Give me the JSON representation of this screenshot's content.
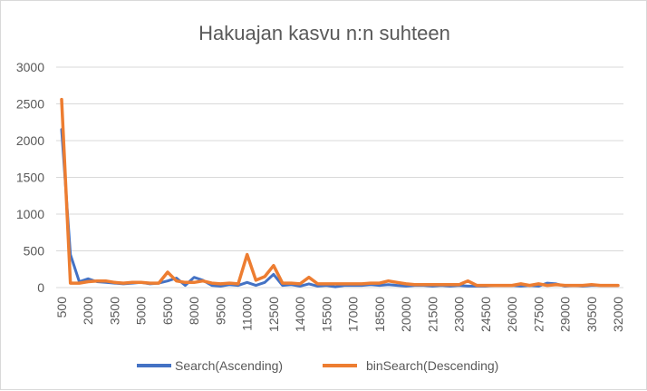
{
  "chart_data": {
    "type": "line",
    "title": "Hakuajan kasvu n:n suhteen",
    "xlabel": "",
    "ylabel": "",
    "ylim": [
      0,
      3000
    ],
    "yticks": [
      "0",
      "500",
      "1000",
      "1500",
      "2000",
      "2500",
      "3000"
    ],
    "grid": true,
    "legend_position": "bottom",
    "x": [
      500,
      1000,
      1500,
      2000,
      2500,
      3000,
      3500,
      4000,
      4500,
      5000,
      5500,
      6000,
      6500,
      7000,
      7500,
      8000,
      8500,
      9000,
      9500,
      10000,
      10500,
      11000,
      11500,
      12000,
      12500,
      13000,
      13500,
      14000,
      14500,
      15000,
      15500,
      16000,
      16500,
      17000,
      17500,
      18000,
      18500,
      19000,
      19500,
      20000,
      20500,
      21000,
      21500,
      22000,
      22500,
      23000,
      23500,
      24000,
      24500,
      25000,
      25500,
      26000,
      26500,
      27000,
      27500,
      28000,
      28500,
      29000,
      29500,
      30000,
      30500,
      31000,
      31500,
      32000
    ],
    "xtick_labels": [
      "500",
      "2000",
      "3500",
      "5000",
      "6500",
      "8000",
      "9500",
      "11000",
      "12500",
      "14000",
      "15500",
      "17000",
      "18500",
      "20000",
      "21500",
      "23000",
      "24500",
      "26000",
      "27500",
      "29000",
      "30500",
      "32000"
    ],
    "series": [
      {
        "name": "Search(Ascending)",
        "color": "#4472c4",
        "values": [
          2150,
          450,
          80,
          120,
          80,
          70,
          60,
          50,
          60,
          70,
          50,
          60,
          90,
          130,
          30,
          140,
          100,
          30,
          20,
          40,
          30,
          70,
          30,
          70,
          180,
          30,
          40,
          20,
          50,
          20,
          30,
          10,
          30,
          30,
          30,
          40,
          30,
          40,
          30,
          20,
          30,
          30,
          20,
          30,
          20,
          30,
          20,
          20,
          20,
          30,
          30,
          30,
          20,
          30,
          20,
          60,
          50,
          20,
          30,
          20,
          30,
          30,
          30,
          30
        ]
      },
      {
        "name": "binSearch(Descending)",
        "color": "#ed7d31",
        "values": [
          2560,
          60,
          60,
          80,
          90,
          90,
          70,
          60,
          70,
          70,
          60,
          60,
          210,
          90,
          70,
          70,
          90,
          60,
          50,
          60,
          50,
          450,
          100,
          150,
          300,
          60,
          60,
          50,
          140,
          50,
          50,
          50,
          50,
          50,
          50,
          60,
          60,
          90,
          70,
          50,
          40,
          40,
          40,
          40,
          40,
          40,
          90,
          30,
          30,
          30,
          30,
          30,
          50,
          30,
          50,
          30,
          40,
          30,
          30,
          30,
          40,
          30,
          30,
          30
        ]
      }
    ]
  }
}
